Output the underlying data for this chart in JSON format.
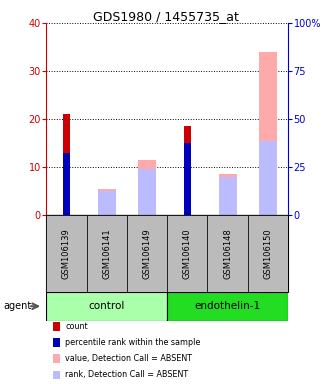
{
  "title": "GDS1980 / 1455735_at",
  "samples": [
    "GSM106139",
    "GSM106141",
    "GSM106149",
    "GSM106140",
    "GSM106148",
    "GSM106150"
  ],
  "groups": [
    {
      "name": "control",
      "indices": [
        0,
        1,
        2
      ],
      "color": "#aaffaa"
    },
    {
      "name": "endothelin-1",
      "indices": [
        3,
        4,
        5
      ],
      "color": "#22dd22"
    }
  ],
  "count_values": [
    21,
    0,
    0,
    18.5,
    0,
    0
  ],
  "percentile_values": [
    13,
    0,
    0,
    15,
    0,
    0
  ],
  "absent_value_values": [
    0,
    5.5,
    11.5,
    0,
    8.5,
    34
  ],
  "absent_rank_values": [
    0,
    5,
    9.5,
    0,
    8,
    15.5
  ],
  "ylim_left": [
    0,
    40
  ],
  "ylim_right": [
    0,
    100
  ],
  "yticks_left": [
    0,
    10,
    20,
    30,
    40
  ],
  "yticks_right": [
    0,
    25,
    50,
    75,
    100
  ],
  "ytick_labels_left": [
    "0",
    "10",
    "20",
    "30",
    "40"
  ],
  "ytick_labels_right": [
    "0",
    "25",
    "50",
    "75",
    "100%"
  ],
  "left_axis_color": "#cc0000",
  "right_axis_color": "#0000cc",
  "narrow_bar_width": 0.18,
  "wide_bar_width": 0.45,
  "count_color": "#cc0000",
  "percentile_color": "#0000bb",
  "absent_value_color": "#ffaaaa",
  "absent_rank_color": "#bbbbff",
  "legend_labels": [
    "count",
    "percentile rank within the sample",
    "value, Detection Call = ABSENT",
    "rank, Detection Call = ABSENT"
  ],
  "legend_colors": [
    "#cc0000",
    "#0000bb",
    "#ffaaaa",
    "#bbbbff"
  ],
  "agent_label": "agent",
  "bg_color": "#bbbbbb",
  "plot_bg_color": "#ffffff"
}
